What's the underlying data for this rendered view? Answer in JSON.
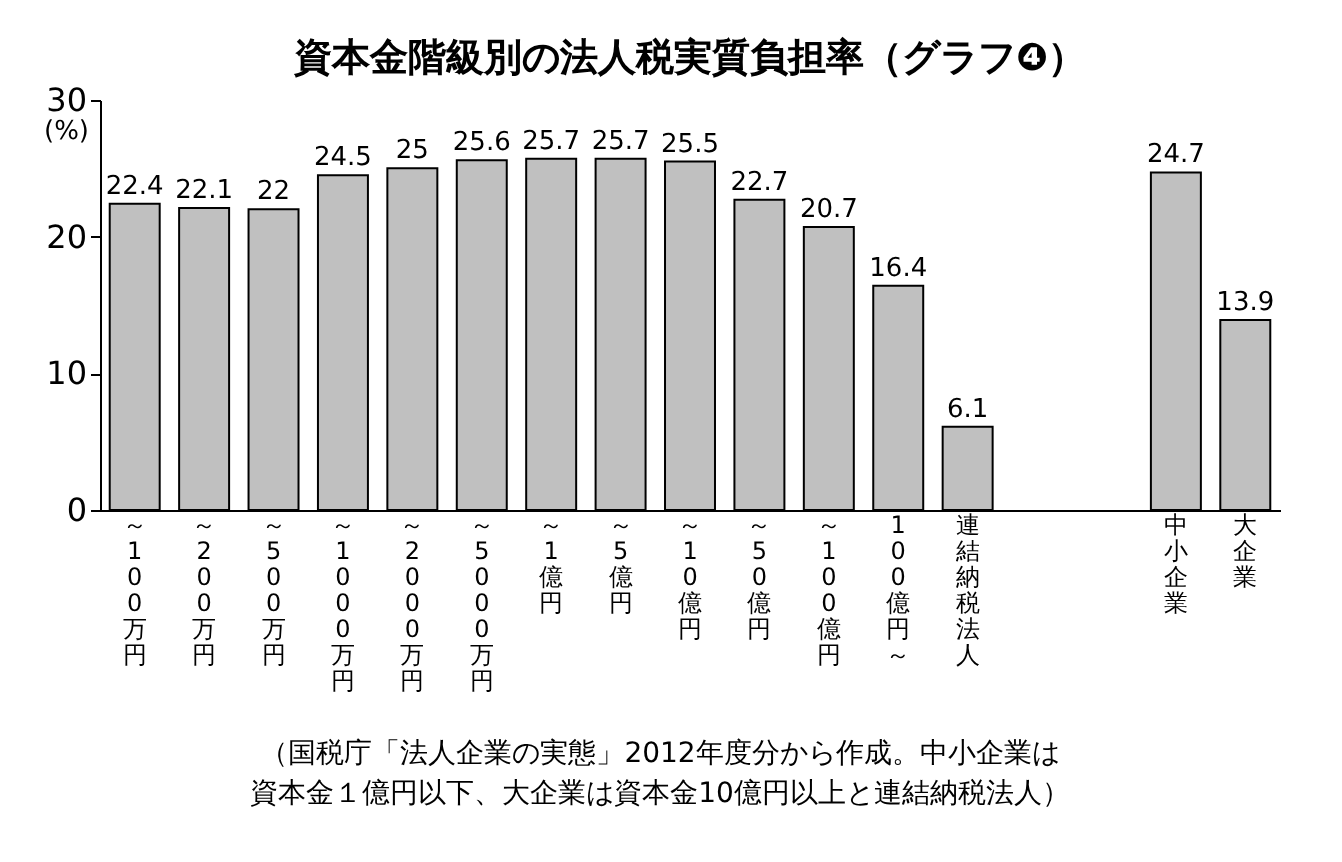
{
  "chart_data": {
    "type": "bar",
    "title": "資本金階級別の法人税実質負担率（グラフ❹）",
    "ylabel": "(%)",
    "categories": [
      "～100万円",
      "～200万円",
      "～500万円",
      "～1000万円",
      "～2000万円",
      "～5000万円",
      "～1億円",
      "～5億円",
      "～10億円",
      "～50億円",
      "～100億円",
      "100億円～",
      "連結納税法人",
      null,
      null,
      "中小企業",
      "大企業"
    ],
    "values": [
      22.4,
      22.1,
      22,
      24.5,
      25,
      25.6,
      25.7,
      25.7,
      25.5,
      22.7,
      20.7,
      16.4,
      6.1,
      null,
      null,
      24.7,
      13.9
    ],
    "color": "#c0c0c0",
    "data_labels": true,
    "ylim": [
      0,
      30
    ],
    "yticks": [
      0,
      10,
      20,
      30
    ],
    "grid": false,
    "annotations": [
      "（国税庁「法人企業の実態」2012年度分から作成。中小企業は",
      "資本金１億円以下、大企業は資本金10億円以上と連結納税法人）"
    ]
  }
}
